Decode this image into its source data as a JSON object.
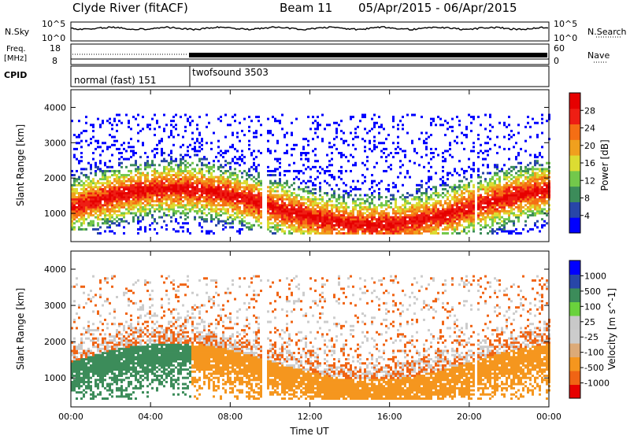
{
  "header": {
    "title": "Clyde River (fitACF)",
    "beam": "Beam 11",
    "date_range": "05/Apr/2015 - 06/Apr/2015"
  },
  "panels": {
    "nsky": {
      "left_label": "N.Sky",
      "ticks": [
        "10^5",
        "10^0"
      ],
      "right_label": "N.Search",
      "right_ticks": [
        "10^5",
        "10^0"
      ]
    },
    "freq": {
      "left_label_1": "Freq.",
      "left_label_2": "[MHz]",
      "ticks": [
        "18",
        "8"
      ],
      "right_label": "Nave",
      "right_ticks": [
        "60",
        "0"
      ]
    },
    "cpid": {
      "label": "CPID",
      "modes": [
        "normal (fast) 151",
        "twofsound 3503"
      ]
    }
  },
  "colors": {
    "power_scale": [
      "#0000ff",
      "#2846a8",
      "#3c8c5a",
      "#73c84b",
      "#dcdc32",
      "#f0a01e",
      "#f56e14",
      "#ee1e14",
      "#e60000"
    ],
    "velocity_scale": [
      "#e60000",
      "#f06414",
      "#f5961e",
      "#dcaa78",
      "#cccccc",
      "#c8c8c8",
      "#6ad23c",
      "#3c8c5a",
      "#2846a8",
      "#0000ff"
    ],
    "gray": "#c8c8c8"
  },
  "chart_data": [
    {
      "type": "heatmap",
      "title": "Power",
      "ylabel": "Slant Range [km]",
      "xlabel": "Time UT",
      "x_ticks": [
        "00:00",
        "04:00",
        "08:00",
        "12:00",
        "16:00",
        "20:00",
        "00:00"
      ],
      "y_ticks": [
        1000,
        2000,
        3000,
        4000
      ],
      "ylim": [
        200,
        4500
      ],
      "colorbar": {
        "label": "Power [dB]",
        "ticks": [
          4,
          8,
          12,
          16,
          20,
          24,
          28
        ]
      }
    },
    {
      "type": "heatmap",
      "title": "Velocity",
      "ylabel": "Slant Range [km]",
      "xlabel": "Time UT",
      "x_ticks": [
        "00:00",
        "04:00",
        "08:00",
        "12:00",
        "16:00",
        "20:00",
        "00:00"
      ],
      "y_ticks": [
        1000,
        2000,
        3000,
        4000
      ],
      "ylim": [
        200,
        4500
      ],
      "colorbar": {
        "label": "Velocity [m s^-1]",
        "ticks": [
          "1000",
          "500",
          "100",
          "25",
          "-25",
          "-100",
          "-500",
          "-1000"
        ]
      }
    }
  ],
  "x_axis_title": "Time UT"
}
